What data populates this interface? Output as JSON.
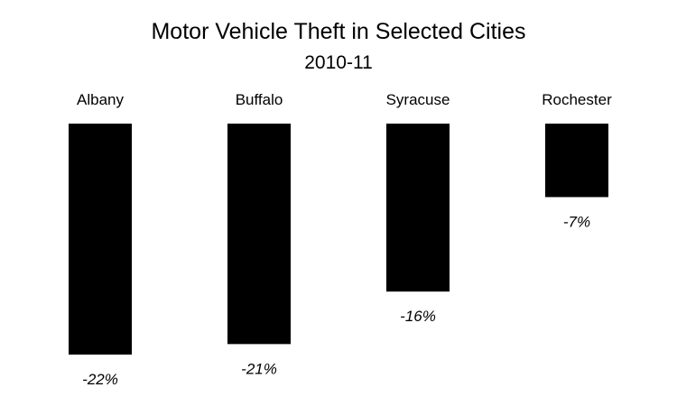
{
  "chart_data": {
    "type": "bar",
    "title": "Motor Vehicle Theft in Selected Cities",
    "subtitle": "2010-11",
    "categories": [
      "Albany",
      "Buffalo",
      "Syracuse",
      "Rochester"
    ],
    "values": [
      -22,
      -21,
      -16,
      -7
    ],
    "value_labels": [
      "-22%",
      "-21%",
      "-16%",
      "-7%"
    ],
    "bar_color": "#000000",
    "ylim": [
      -22,
      0
    ],
    "xlabel": "",
    "ylabel": "",
    "grid": false,
    "legend": "none",
    "category_label_position": "top",
    "value_label_position": "below-bar"
  }
}
